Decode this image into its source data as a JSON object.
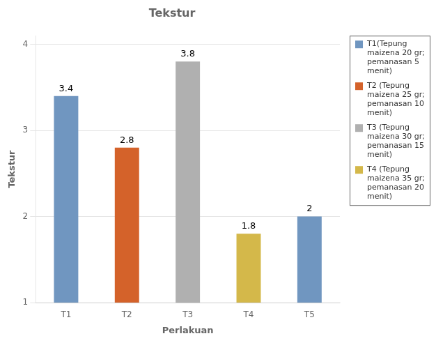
{
  "chart_data": {
    "type": "bar",
    "title": "Tekstur",
    "xlabel": "Perlakuan",
    "ylabel": "Tekstur",
    "categories": [
      "T1",
      "T2",
      "T3",
      "T4",
      "T5"
    ],
    "values": [
      3.4,
      2.8,
      3.8,
      1.8,
      2
    ],
    "colors": [
      "#7096c0",
      "#d4622a",
      "#b0b0b0",
      "#d4b84a",
      "#7096c0"
    ],
    "ylim": [
      1,
      4.1
    ],
    "yticks": [
      1,
      2,
      3,
      4
    ],
    "grid": true,
    "data_labels": true,
    "legend": "right",
    "legend_entries": [
      {
        "name": "T1(Tepung\nmaizena 20 gr;\npemanasan 5\nmenit)",
        "color": "#7096c0"
      },
      {
        "name": "T2 (Tepung\nmaizena 25 gr;\npemanasan 10\nmenit)",
        "color": "#d4622a"
      },
      {
        "name": "T3 (Tepung\nmaizena 30 gr;\npemanasan 15\nmenit)",
        "color": "#b0b0b0"
      },
      {
        "name": "T4 (Tepung\nmaizena 35 gr;\npemanasan 20\nmenit)",
        "color": "#d4b84a"
      }
    ]
  }
}
